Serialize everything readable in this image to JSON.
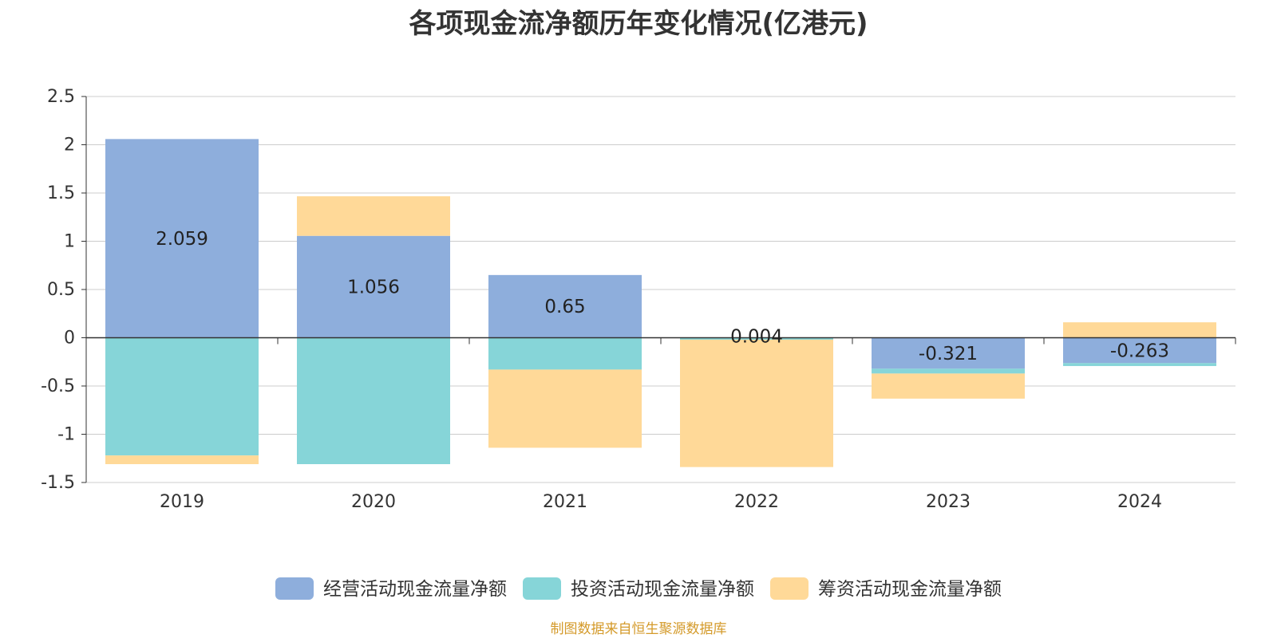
{
  "chart_data": {
    "type": "bar",
    "stacked": true,
    "title": "各项现金流净额历年变化情况(亿港元)",
    "categories": [
      "2019",
      "2020",
      "2021",
      "2022",
      "2023",
      "2024"
    ],
    "ylim": [
      -1.5,
      2.5
    ],
    "yticks": [
      2.5,
      2,
      1.5,
      1,
      0.5,
      0,
      -0.5,
      -1,
      -1.5
    ],
    "ytick_labels": [
      "2.5",
      "2",
      "1.5",
      "1",
      "0.5",
      "0",
      "-0.5",
      "-1",
      "-1.5"
    ],
    "grid": true,
    "legend_position": "bottom",
    "series": [
      {
        "name": "经营活动现金流量净额",
        "color": "#8eaedc",
        "values": [
          2.059,
          1.056,
          0.65,
          0.004,
          -0.321,
          -0.263
        ],
        "labels": [
          "2.059",
          "1.056",
          "0.65",
          "0.004",
          "-0.321",
          "-0.263"
        ]
      },
      {
        "name": "投资活动现金流量净额",
        "color": "#86d5d8",
        "values": [
          -1.22,
          -1.31,
          -0.33,
          -0.02,
          -0.05,
          -0.03
        ]
      },
      {
        "name": "筹资活动现金流量净额",
        "color": "#ffd998",
        "values": [
          -0.09,
          0.41,
          -0.81,
          -1.32,
          -0.26,
          0.16
        ]
      }
    ]
  },
  "source_note": "制图数据来自恒生聚源数据库"
}
